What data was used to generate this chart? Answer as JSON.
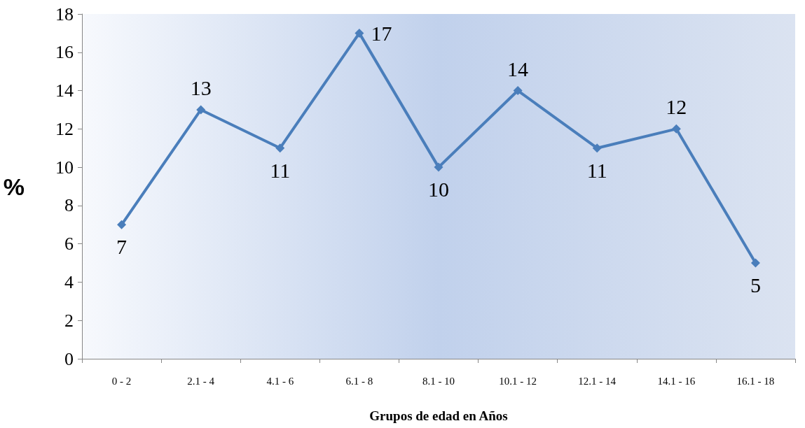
{
  "chart_data": {
    "type": "line",
    "xlabel": "Grupos de edad en Años",
    "ylabel": "%",
    "categories": [
      "0 - 2",
      "2.1 - 4",
      "4.1 - 6",
      "6.1 - 8",
      "8.1 - 10",
      "10.1 - 12",
      "12.1 - 14",
      "14.1 - 16",
      "16.1 - 18"
    ],
    "series": [
      {
        "color": "#4a7ebb",
        "values": [
          7,
          13,
          11,
          17,
          10,
          14,
          11,
          12,
          5
        ]
      }
    ],
    "ylim": [
      0,
      18
    ],
    "yticks": [
      0,
      2,
      4,
      6,
      8,
      10,
      12,
      14,
      16,
      18
    ],
    "data_labels": true,
    "grid": false,
    "marker": "diamond",
    "line_style": "solid"
  }
}
